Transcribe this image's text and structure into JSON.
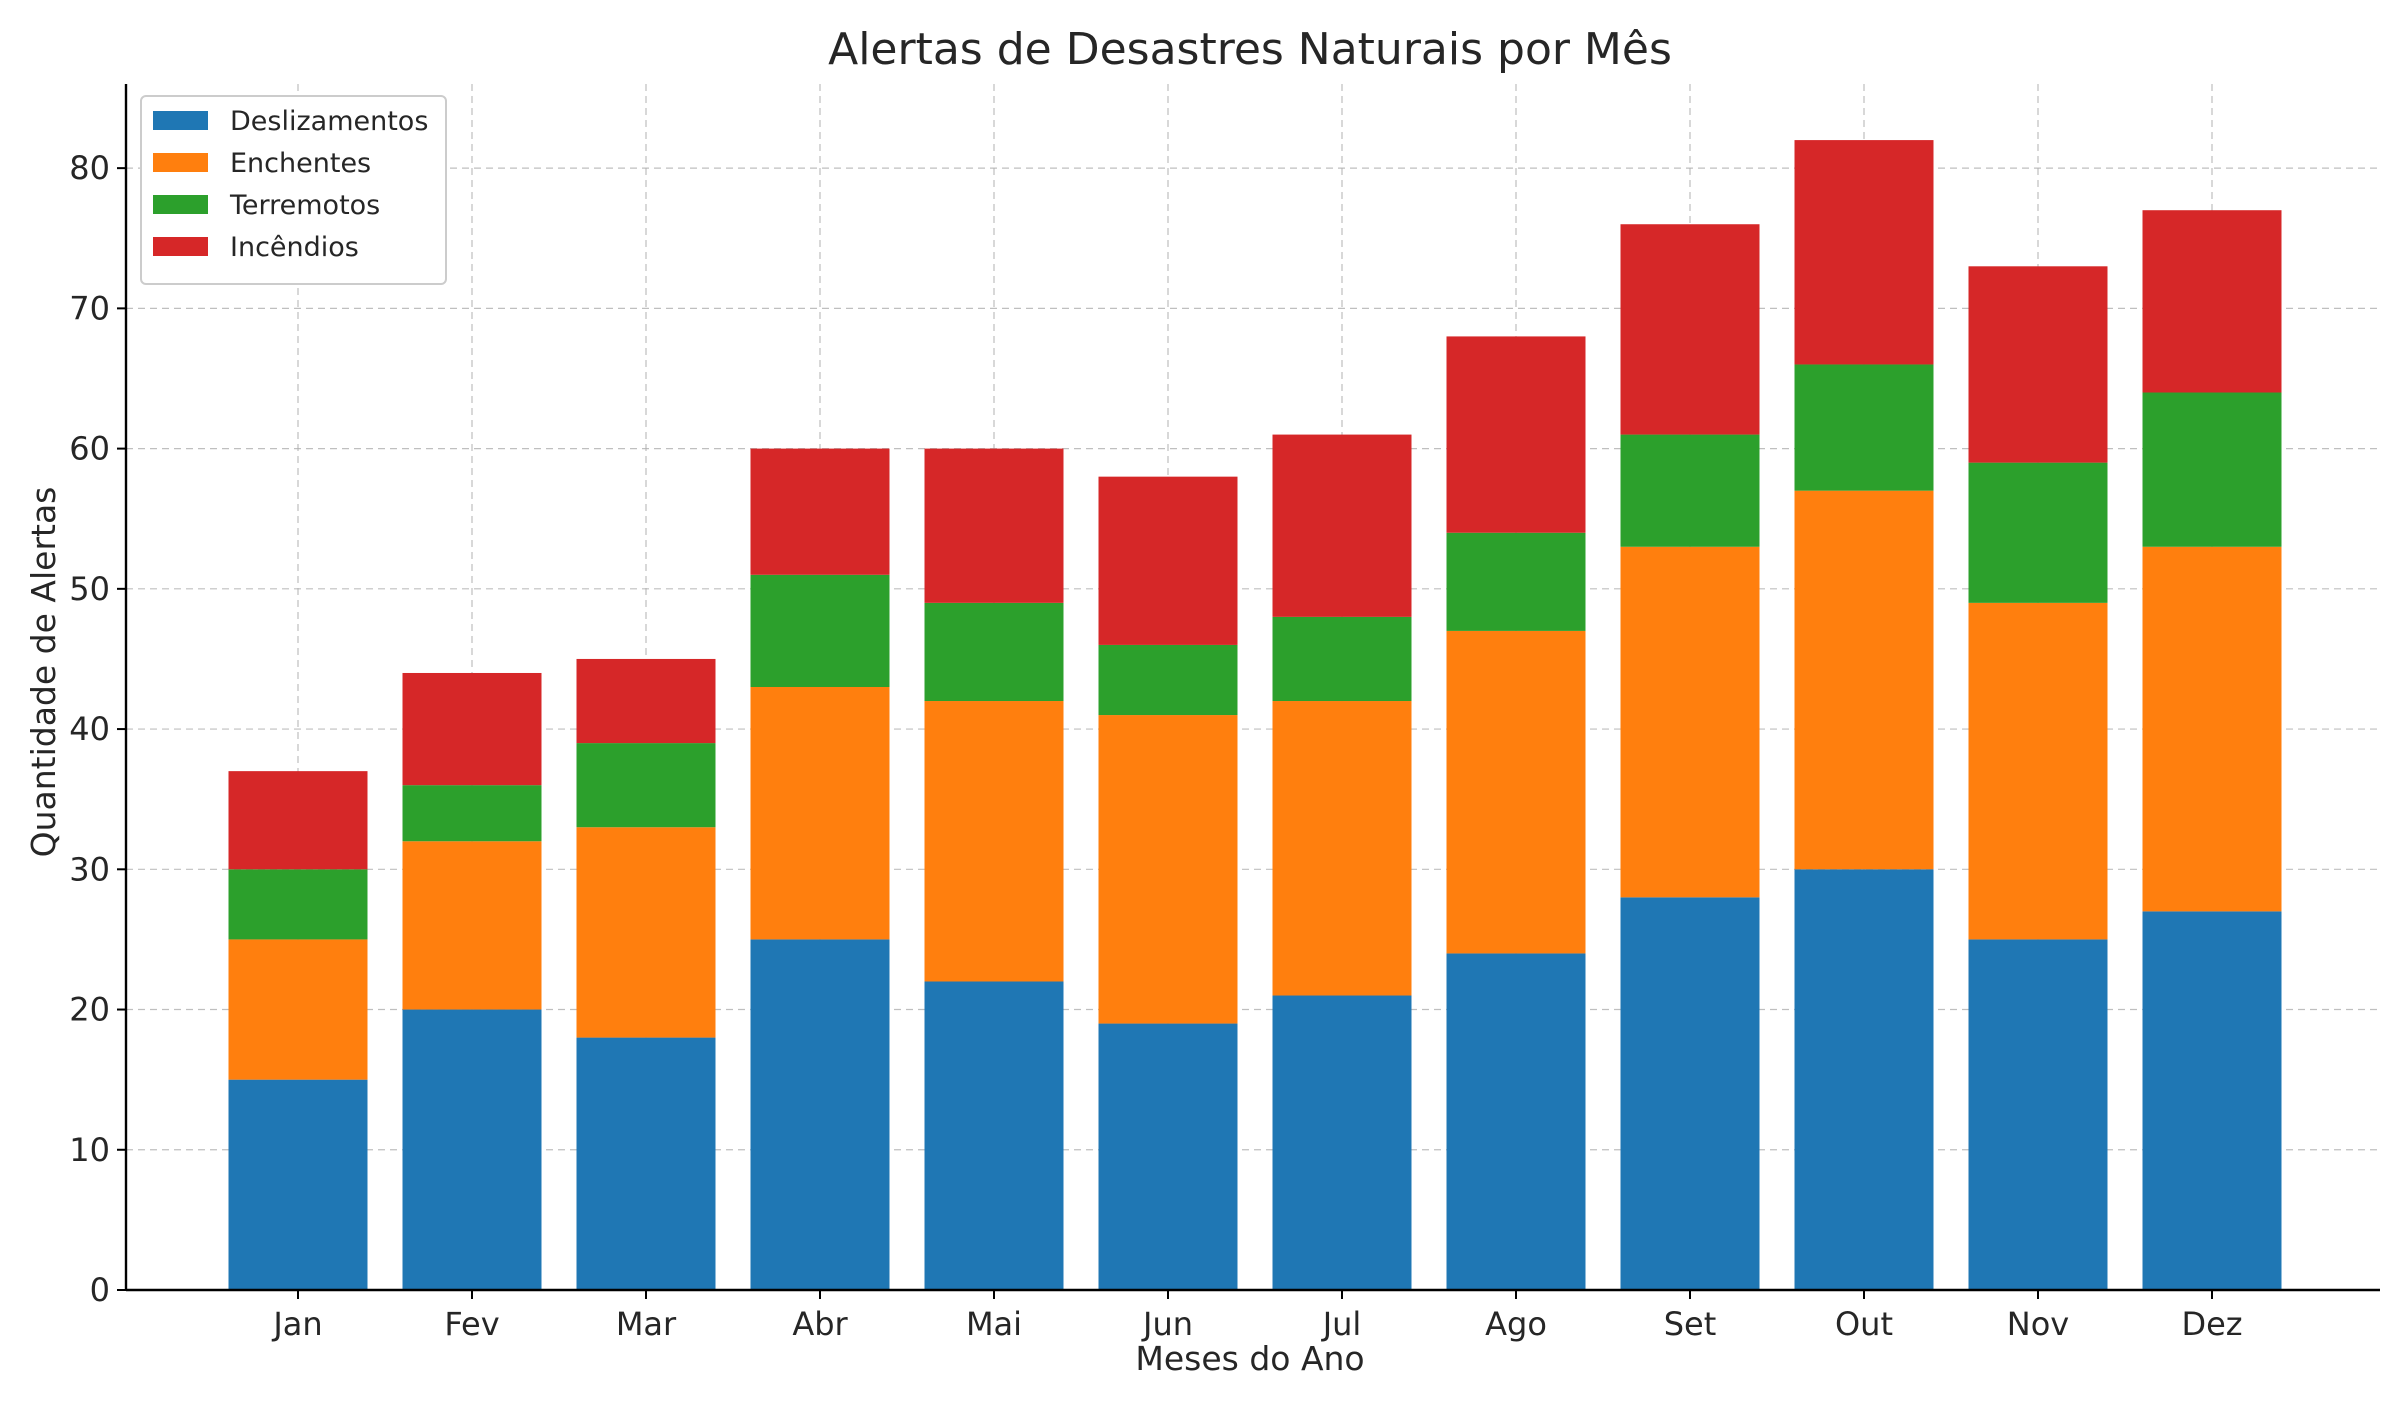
{
  "chart_data": {
    "type": "bar",
    "stacked": true,
    "title": "Alertas de Desastres Naturais por Mês",
    "xlabel": "Meses do Ano",
    "ylabel": "Quantidade de Alertas",
    "categories": [
      "Jan",
      "Fev",
      "Mar",
      "Abr",
      "Mai",
      "Jun",
      "Jul",
      "Ago",
      "Set",
      "Out",
      "Nov",
      "Dez"
    ],
    "series": [
      {
        "name": "Deslizamentos",
        "color": "#1f77b4",
        "values": [
          15,
          20,
          18,
          25,
          22,
          19,
          21,
          24,
          28,
          30,
          25,
          27
        ]
      },
      {
        "name": "Enchentes",
        "color": "#ff7f0e",
        "values": [
          10,
          12,
          15,
          18,
          20,
          22,
          21,
          23,
          25,
          27,
          24,
          26
        ]
      },
      {
        "name": "Terremotos",
        "color": "#2ca02c",
        "values": [
          5,
          4,
          6,
          8,
          7,
          5,
          6,
          7,
          8,
          9,
          10,
          11
        ]
      },
      {
        "name": "Incêndios",
        "color": "#d62728",
        "values": [
          7,
          8,
          6,
          9,
          11,
          12,
          13,
          14,
          15,
          16,
          14,
          13
        ]
      }
    ],
    "ylim": [
      0,
      86
    ],
    "yticks": [
      0,
      10,
      20,
      30,
      40,
      50,
      60,
      70,
      80
    ],
    "grid": true,
    "legend_position": "top-left"
  }
}
